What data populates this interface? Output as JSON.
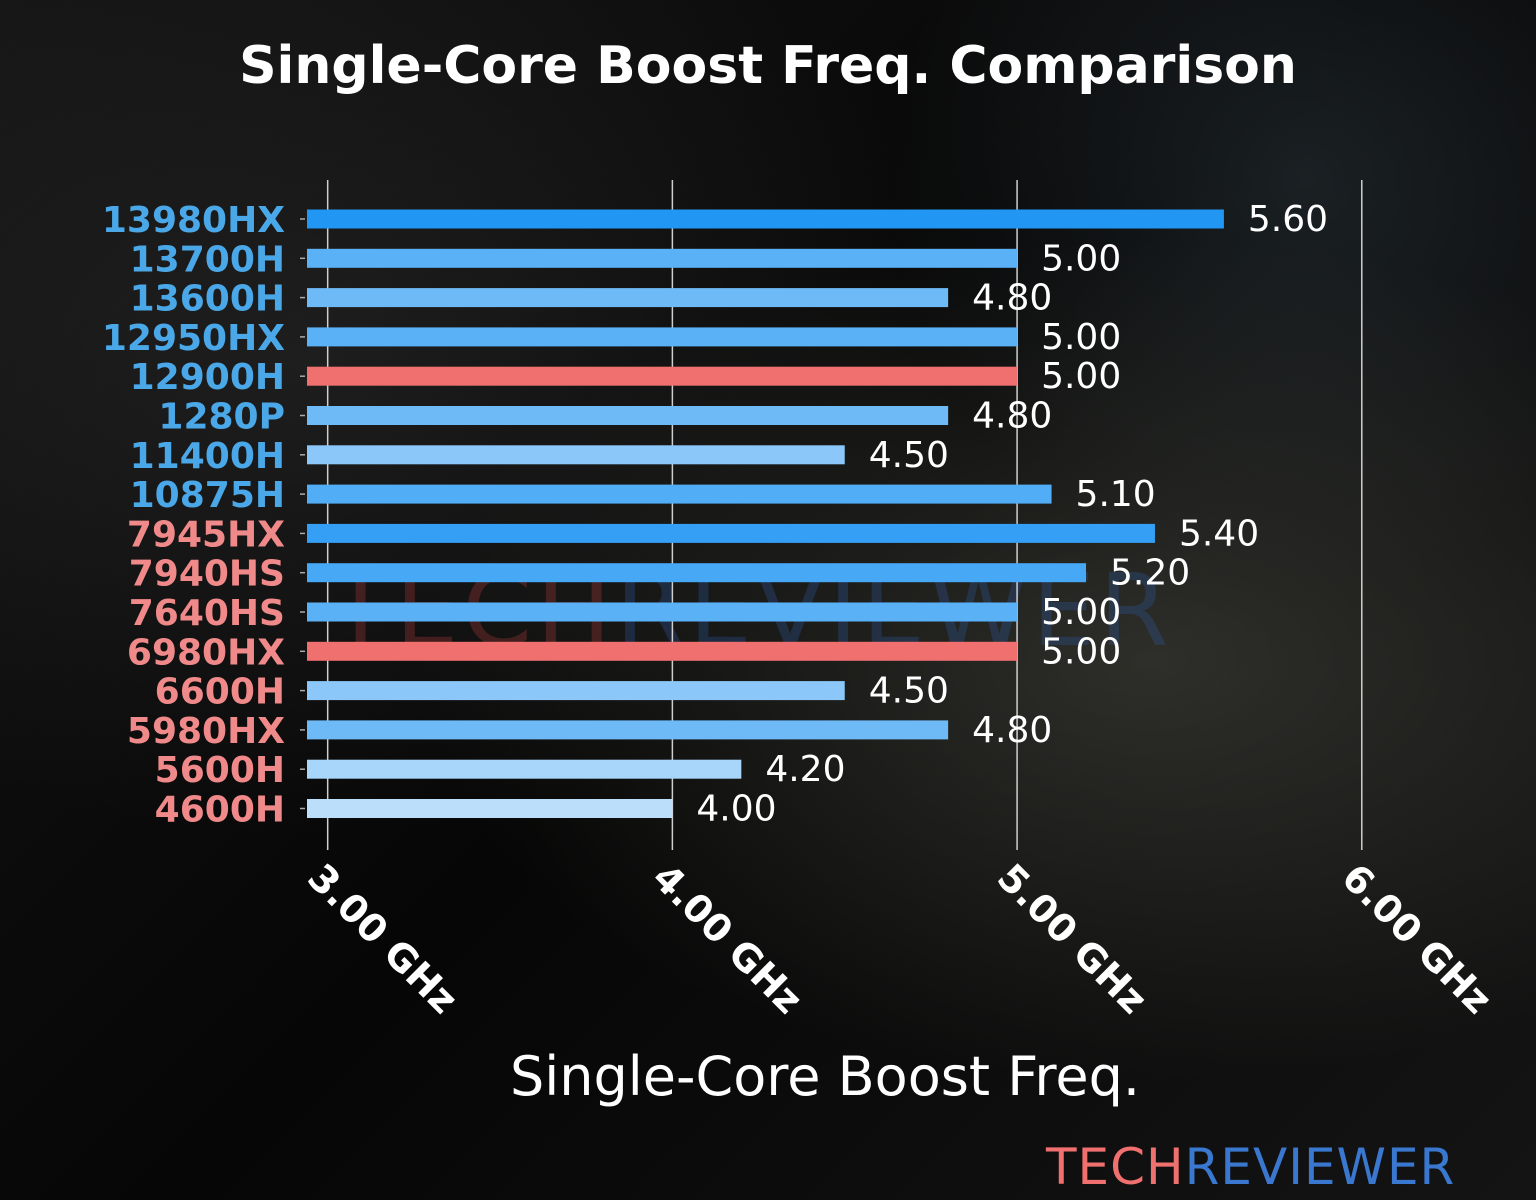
{
  "chart_data": {
    "type": "bar",
    "orientation": "horizontal",
    "title": "Single-Core Boost Freq. Comparison",
    "xlabel": "Single-Core Boost Freq.",
    "ylabel": "",
    "xlim": [
      2.94,
      6.1
    ],
    "xticks": [
      3,
      4,
      5,
      6
    ],
    "xtick_labels": [
      "3.00 GHz",
      "4.00 GHz",
      "5.00 GHz",
      "6.00 GHz"
    ],
    "grid": "vertical",
    "categories": [
      "13980HX",
      "13700H",
      "13600H",
      "12950HX",
      "12900H",
      "1280P",
      "11400H",
      "10875H",
      "7945HX",
      "7940HS",
      "7640HS",
      "6980HX",
      "6600H",
      "5980HX",
      "5600H",
      "4600H"
    ],
    "values": [
      5.6,
      5.0,
      4.8,
      5.0,
      5.0,
      4.8,
      4.5,
      5.1,
      5.4,
      5.2,
      5.0,
      5.0,
      4.5,
      4.8,
      4.2,
      4.0
    ],
    "value_labels": [
      "5.60",
      "5.00",
      "4.80",
      "5.00",
      "5.00",
      "4.80",
      "4.50",
      "5.10",
      "5.40",
      "5.20",
      "5.00",
      "5.00",
      "4.50",
      "4.80",
      "4.20",
      "4.00"
    ],
    "highlighted": [
      "12900H",
      "6980HX"
    ],
    "label_groups": [
      "intel",
      "intel",
      "intel",
      "intel",
      "intel",
      "intel",
      "intel",
      "intel",
      "amd",
      "amd",
      "amd",
      "amd",
      "amd",
      "amd",
      "amd",
      "amd"
    ]
  },
  "colors": {
    "intel_label": "#4aa8e8",
    "amd_label": "#f08a8a",
    "highlight_bar": "#f07070",
    "bar_low": "#bbdefb",
    "bar_high": "#2196f3"
  },
  "brand": {
    "part1": "TECH",
    "part2": "REVIEWER"
  }
}
